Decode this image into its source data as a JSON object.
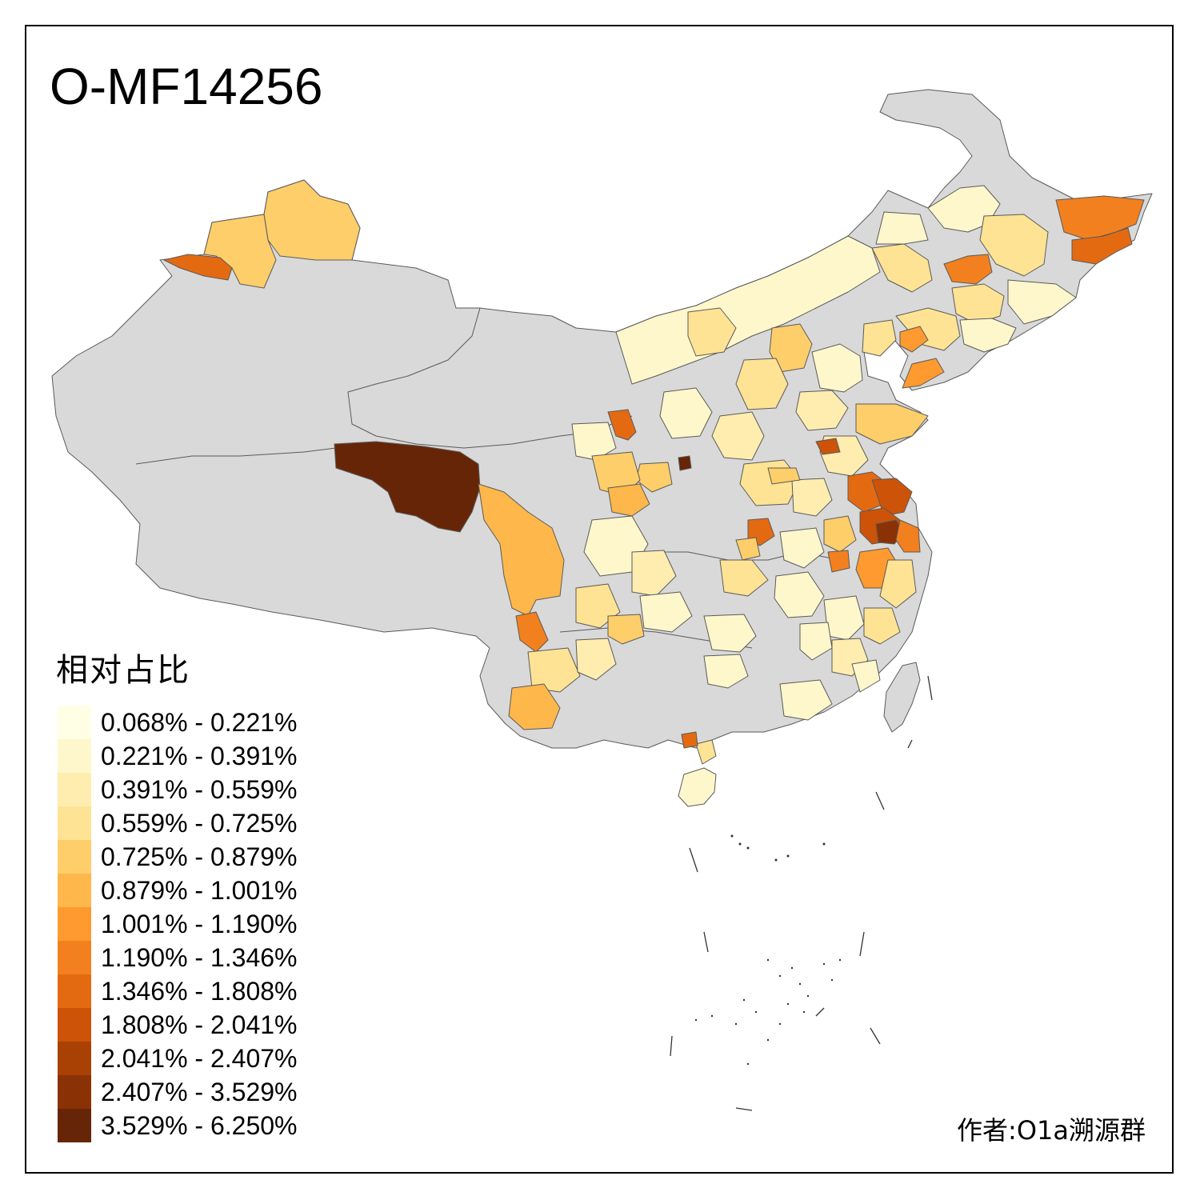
{
  "title": "O-MF14256",
  "legend": {
    "title": "相对占比",
    "items": [
      {
        "label": "0.068% - 0.221%",
        "color": "#ffffe5"
      },
      {
        "label": "0.221% - 0.391%",
        "color": "#fff7cc"
      },
      {
        "label": "0.391% - 0.559%",
        "color": "#ffedb0"
      },
      {
        "label": "0.559% - 0.725%",
        "color": "#fee394"
      },
      {
        "label": "0.725% - 0.879%",
        "color": "#fece6a"
      },
      {
        "label": "0.879% - 1.001%",
        "color": "#feb74b"
      },
      {
        "label": "1.001% - 1.190%",
        "color": "#fe9a2f"
      },
      {
        "label": "1.190% - 1.346%",
        "color": "#f3801e"
      },
      {
        "label": "1.346% - 1.808%",
        "color": "#e46a12"
      },
      {
        "label": "1.808% - 2.041%",
        "color": "#cc5308"
      },
      {
        "label": "2.041% - 2.407%",
        "color": "#a94004"
      },
      {
        "label": "2.407% - 3.529%",
        "color": "#8a3205"
      },
      {
        "label": "3.529% - 6.250%",
        "color": "#662506"
      }
    ]
  },
  "author": "作者:O1a溯源群",
  "colors": {
    "no_data": "#d9d9d9",
    "border": "#5a5a5a"
  }
}
